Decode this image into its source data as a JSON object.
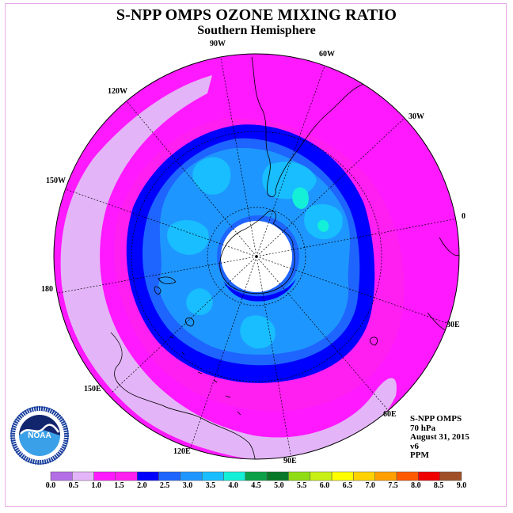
{
  "title": "S-NPP OMPS OZONE MIXING RATIO",
  "subtitle": "Southern Hemisphere",
  "info": {
    "instrument": "S-NPP OMPS",
    "level": "70 hPa",
    "date": "August 31, 2015",
    "version": "v6",
    "units": "PPM"
  },
  "longitude_labels": {
    "lon_90w": "90W",
    "lon_60w": "60W",
    "lon_30w": "30W",
    "lon_0": "0",
    "lon_30e": "30E",
    "lon_60e": "60E",
    "lon_90e": "90E",
    "lon_120e": "120E",
    "lon_150e": "150E",
    "lon_180": "180",
    "lon_150w": "150W",
    "lon_120w": "120W"
  },
  "logo": {
    "text": "NOAA",
    "ring_text": "NATIONAL OCEANIC AND ATMOSPHERIC ADMINISTRATION · U.S. DEPARTMENT OF COMMERCE"
  },
  "colorbar": {
    "ticks": [
      "0.0",
      "0.5",
      "1.0",
      "1.5",
      "2.0",
      "2.5",
      "3.0",
      "3.5",
      "4.0",
      "4.5",
      "5.0",
      "5.5",
      "6.0",
      "6.5",
      "7.0",
      "7.5",
      "8.0",
      "8.5",
      "9.0"
    ],
    "colors": [
      "#b46ee6",
      "#e4b4f8",
      "#ff19ff",
      "#ff1ff0",
      "#0000ff",
      "#1e64ff",
      "#1e96ff",
      "#18beff",
      "#14f0d8",
      "#0ca048",
      "#087828",
      "#90dc14",
      "#c8f014",
      "#ffff00",
      "#ffd200",
      "#ffa000",
      "#ff5a00",
      "#f00000",
      "#a05028"
    ]
  },
  "colors": {
    "ring_0_5": "#e4b4f8",
    "ring_1_0": "#ff19ff",
    "ring_2_0": "#0000ff",
    "ring_2_5": "#1e64ff",
    "ring_3_0": "#1e96ff",
    "ring_3_5": "#18beff",
    "ring_4_0": "#14f0d8"
  }
}
